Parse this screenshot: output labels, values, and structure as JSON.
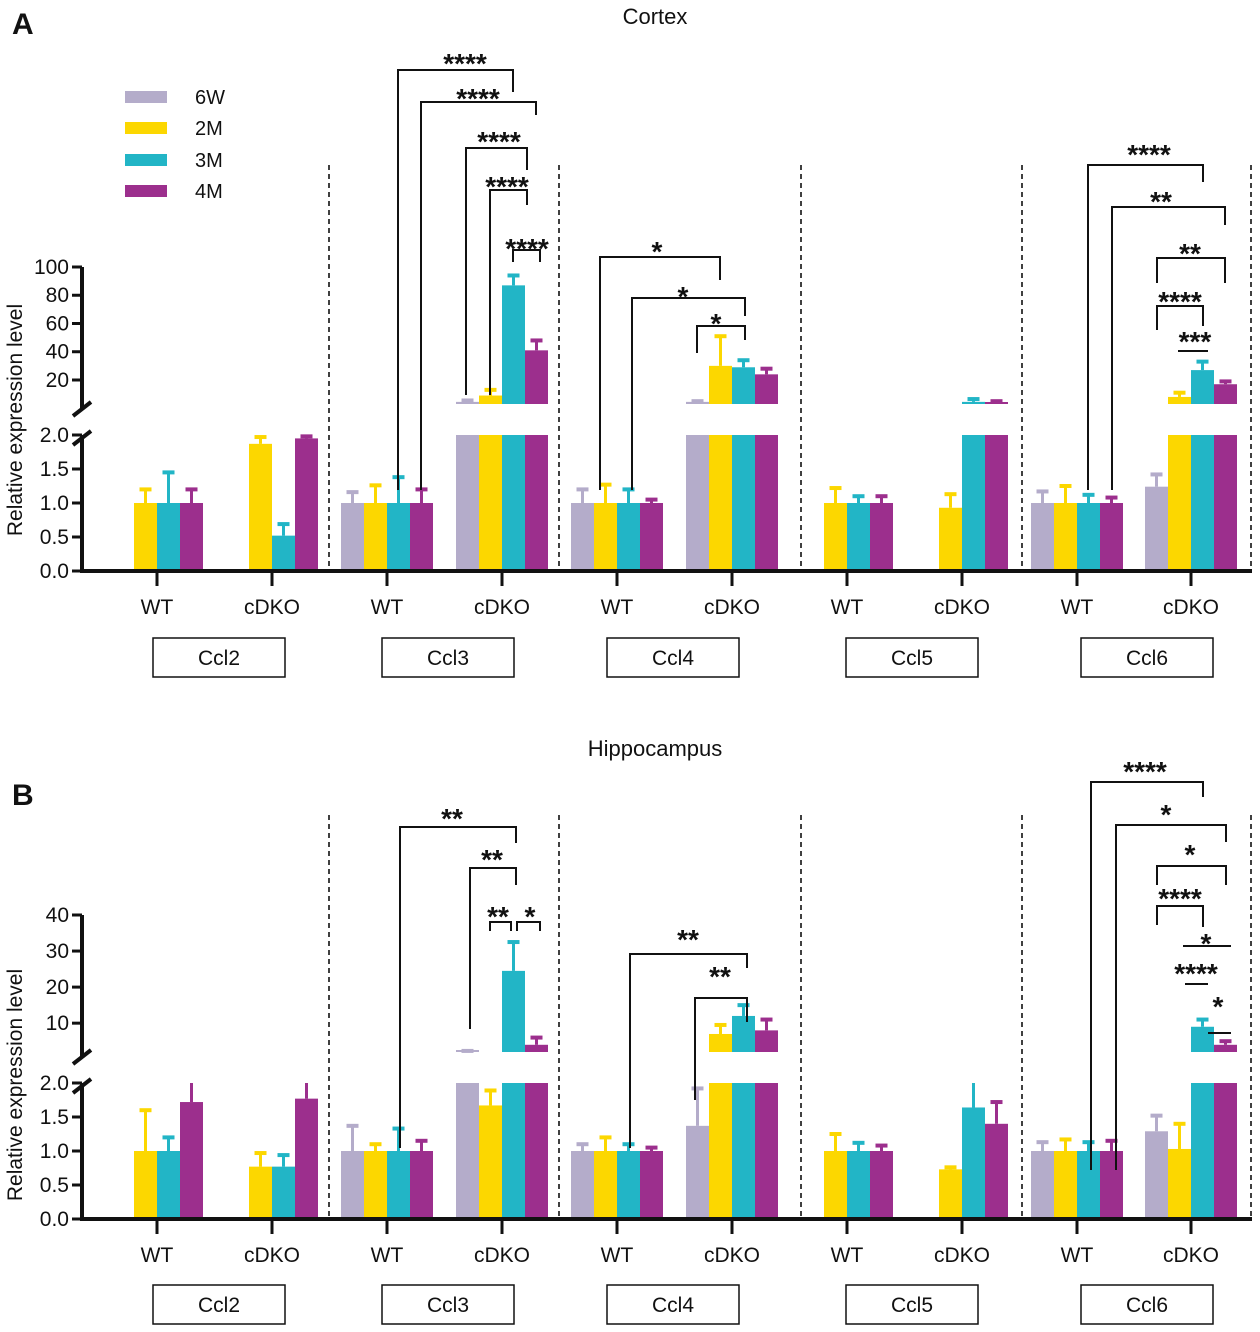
{
  "colors": {
    "6W": "#b4acca",
    "2M": "#fcd700",
    "3M": "#22b5c6",
    "4M": "#9c2f8d"
  },
  "chart_data": [
    {
      "type": "bar",
      "panel_label": "A",
      "title": "Cortex",
      "ylabel": "Relative expression level",
      "ylim_lower": [
        0,
        2
      ],
      "ylim_upper": [
        3,
        100
      ],
      "yticks_lower": [
        "0.0",
        "0.5",
        "1.0",
        "1.5",
        "2.0"
      ],
      "yticks_upper": [
        "20",
        "40",
        "60",
        "80",
        "100"
      ],
      "series": [
        "6W",
        "2M",
        "3M",
        "4M"
      ],
      "legend_position": "top-left",
      "genes": [
        {
          "name": "Ccl2",
          "groups": [
            {
              "genotype": "WT",
              "mean": [
                null,
                1.0,
                1.0,
                1.0
              ],
              "err": [
                null,
                0.2,
                0.45,
                0.2
              ]
            },
            {
              "genotype": "cDKO",
              "mean": [
                null,
                1.87,
                0.52,
                1.95
              ],
              "err": [
                null,
                0.1,
                0.17,
                0.03
              ]
            }
          ]
        },
        {
          "name": "Ccl3",
          "groups": [
            {
              "genotype": "WT",
              "mean": [
                1.0,
                1.0,
                1.0,
                1.0
              ],
              "err": [
                0.16,
                0.26,
                0.38,
                0.2
              ]
            },
            {
              "genotype": "cDKO",
              "mean": [
                4.5,
                9,
                87,
                41
              ],
              "err": [
                1,
                4,
                7,
                7
              ]
            }
          ]
        },
        {
          "name": "Ccl4",
          "groups": [
            {
              "genotype": "WT",
              "mean": [
                1.0,
                1.0,
                1.0,
                1.0
              ],
              "err": [
                0.2,
                0.27,
                0.2,
                0.05
              ]
            },
            {
              "genotype": "cDKO",
              "mean": [
                4.5,
                30,
                29,
                24
              ],
              "err": [
                0.5,
                21,
                5,
                4
              ]
            }
          ]
        },
        {
          "name": "Ccl5",
          "groups": [
            {
              "genotype": "WT",
              "mean": [
                null,
                1.0,
                1.0,
                1.0
              ],
              "err": [
                null,
                0.22,
                0.1,
                0.1
              ]
            },
            {
              "genotype": "cDKO",
              "mean": [
                null,
                0.93,
                4.5,
                4.0
              ],
              "err": [
                null,
                0.2,
                2,
                1
              ]
            }
          ]
        },
        {
          "name": "Ccl6",
          "groups": [
            {
              "genotype": "WT",
              "mean": [
                1.0,
                1.0,
                1.0,
                1.0
              ],
              "err": [
                0.17,
                0.25,
                0.12,
                0.08
              ]
            },
            {
              "genotype": "cDKO",
              "mean": [
                1.24,
                8,
                27,
                17
              ],
              "err": [
                0.18,
                3,
                6,
                2
              ]
            }
          ]
        }
      ],
      "significance": [
        {
          "label": "****",
          "type": "bracket",
          "from": [
            "Ccl3",
            "WT",
            "3M"
          ],
          "to": [
            "Ccl3",
            "cDKO",
            "3M"
          ]
        },
        {
          "label": "****",
          "type": "bracket",
          "from": [
            "Ccl3",
            "WT",
            "4M"
          ],
          "to": [
            "Ccl3",
            "cDKO",
            "4M"
          ]
        },
        {
          "label": "****",
          "type": "bracket",
          "from": [
            "Ccl3",
            "cDKO",
            "6W"
          ],
          "to": [
            "Ccl3",
            "cDKO",
            "3M"
          ]
        },
        {
          "label": "****",
          "type": "bracket",
          "from": [
            "Ccl3",
            "cDKO",
            "2M"
          ],
          "to": [
            "Ccl3",
            "cDKO",
            "3M"
          ]
        },
        {
          "label": "****",
          "type": "bracket",
          "from": [
            "Ccl3",
            "cDKO",
            "3M"
          ],
          "to": [
            "Ccl3",
            "cDKO",
            "4M"
          ]
        },
        {
          "label": "*",
          "type": "bracket",
          "from": [
            "Ccl4",
            "WT",
            "6W"
          ],
          "to": [
            "Ccl4",
            "cDKO",
            "2M"
          ]
        },
        {
          "label": "*",
          "type": "bracket",
          "from": [
            "Ccl4",
            "WT",
            "3M"
          ],
          "to": [
            "Ccl4",
            "cDKO",
            "3M"
          ]
        },
        {
          "label": "*",
          "type": "bracket",
          "from": [
            "Ccl4",
            "cDKO",
            "6W"
          ],
          "to": [
            "Ccl4",
            "cDKO",
            "3M"
          ]
        },
        {
          "label": "****",
          "type": "bracket",
          "from": [
            "Ccl6",
            "WT",
            "3M"
          ],
          "to": [
            "Ccl6",
            "cDKO",
            "3M"
          ]
        },
        {
          "label": "**",
          "type": "bracket",
          "from": [
            "Ccl6",
            "WT",
            "4M"
          ],
          "to": [
            "Ccl6",
            "cDKO",
            "4M"
          ]
        },
        {
          "label": "**",
          "type": "bracket",
          "from": [
            "Ccl6",
            "cDKO",
            "6W"
          ],
          "to": [
            "Ccl6",
            "cDKO",
            "4M"
          ]
        },
        {
          "label": "****",
          "type": "bracket",
          "from": [
            "Ccl6",
            "cDKO",
            "6W"
          ],
          "to": [
            "Ccl6",
            "cDKO",
            "3M"
          ]
        },
        {
          "label": "***",
          "type": "line",
          "from": [
            "Ccl6",
            "cDKO",
            "2M"
          ],
          "to": [
            "Ccl6",
            "cDKO",
            "3M"
          ]
        }
      ]
    },
    {
      "type": "bar",
      "panel_label": "B",
      "title": "Hippocampus",
      "ylabel": "Relative expression level",
      "ylim_lower": [
        0,
        2
      ],
      "ylim_upper": [
        2,
        40
      ],
      "yticks_lower": [
        "0.0",
        "0.5",
        "1.0",
        "1.5",
        "2.0"
      ],
      "yticks_upper": [
        "10",
        "20",
        "30",
        "40"
      ],
      "series": [
        "6W",
        "2M",
        "3M",
        "4M"
      ],
      "legend_position": "none",
      "genes": [
        {
          "name": "Ccl2",
          "groups": [
            {
              "genotype": "WT",
              "mean": [
                null,
                1.0,
                1.0,
                1.72
              ],
              "err": [
                null,
                0.6,
                0.2,
                0.28
              ]
            },
            {
              "genotype": "cDKO",
              "mean": [
                null,
                0.77,
                0.77,
                1.77
              ],
              "err": [
                null,
                0.2,
                0.17,
                0.23
              ]
            }
          ]
        },
        {
          "name": "Ccl3",
          "groups": [
            {
              "genotype": "WT",
              "mean": [
                1.0,
                1.0,
                1.0,
                1.0
              ],
              "err": [
                0.37,
                0.1,
                0.33,
                0.15
              ]
            },
            {
              "genotype": "cDKO",
              "mean": [
                2.1,
                1.67,
                24.5,
                4
              ],
              "err": [
                0.2,
                0.22,
                8,
                2
              ]
            }
          ]
        },
        {
          "name": "Ccl4",
          "groups": [
            {
              "genotype": "WT",
              "mean": [
                1.0,
                1.0,
                1.0,
                1.0
              ],
              "err": [
                0.1,
                0.2,
                0.1,
                0.05
              ]
            },
            {
              "genotype": "cDKO",
              "mean": [
                1.37,
                7,
                12,
                8
              ],
              "err": [
                0.55,
                2.5,
                3,
                3
              ]
            }
          ]
        },
        {
          "name": "Ccl5",
          "groups": [
            {
              "genotype": "WT",
              "mean": [
                null,
                1.0,
                1.0,
                1.0
              ],
              "err": [
                null,
                0.25,
                0.12,
                0.08
              ]
            },
            {
              "genotype": "cDKO",
              "mean": [
                null,
                0.73,
                1.64,
                1.4
              ],
              "err": [
                null,
                0.03,
                0.36,
                0.32
              ]
            }
          ]
        },
        {
          "name": "Ccl6",
          "groups": [
            {
              "genotype": "WT",
              "mean": [
                1.0,
                1.0,
                1.0,
                1.0
              ],
              "err": [
                0.13,
                0.17,
                0.13,
                0.15
              ]
            },
            {
              "genotype": "cDKO",
              "mean": [
                1.29,
                1.03,
                9,
                4
              ],
              "err": [
                0.23,
                0.37,
                2,
                1
              ]
            }
          ]
        }
      ],
      "significance": [
        {
          "label": "**",
          "type": "bracket",
          "from": [
            "Ccl3",
            "WT",
            "2M"
          ],
          "to": [
            "Ccl3",
            "cDKO",
            "3M"
          ]
        },
        {
          "label": "**",
          "type": "bracket",
          "from": [
            "Ccl3",
            "cDKO",
            "6W"
          ],
          "to": [
            "Ccl3",
            "cDKO",
            "3M"
          ]
        },
        {
          "label": "**",
          "type": "bracket",
          "from": [
            "Ccl3",
            "cDKO",
            "2M"
          ],
          "to": [
            "Ccl3",
            "cDKO",
            "3M"
          ]
        },
        {
          "label": "*",
          "type": "bracket",
          "from": [
            "Ccl3",
            "cDKO",
            "3M"
          ],
          "to": [
            "Ccl3",
            "cDKO",
            "4M"
          ]
        },
        {
          "label": "**",
          "type": "bracket",
          "from": [
            "Ccl4",
            "WT",
            "3M"
          ],
          "to": [
            "Ccl4",
            "cDKO",
            "3M"
          ]
        },
        {
          "label": "**",
          "type": "bracket",
          "from": [
            "Ccl4",
            "cDKO",
            "6W"
          ],
          "to": [
            "Ccl4",
            "cDKO",
            "3M"
          ]
        },
        {
          "label": "****",
          "type": "bracket",
          "from": [
            "Ccl6",
            "WT",
            "3M"
          ],
          "to": [
            "Ccl6",
            "cDKO",
            "3M"
          ]
        },
        {
          "label": "*",
          "type": "bracket",
          "from": [
            "Ccl6",
            "WT",
            "4M"
          ],
          "to": [
            "Ccl6",
            "cDKO",
            "4M"
          ]
        },
        {
          "label": "*",
          "type": "bracket",
          "from": [
            "Ccl6",
            "cDKO",
            "6W"
          ],
          "to": [
            "Ccl6",
            "cDKO",
            "4M"
          ]
        },
        {
          "label": "****",
          "type": "bracket",
          "from": [
            "Ccl6",
            "cDKO",
            "6W"
          ],
          "to": [
            "Ccl6",
            "cDKO",
            "3M"
          ]
        },
        {
          "label": "*",
          "type": "line",
          "from": [
            "Ccl6",
            "cDKO",
            "2M"
          ],
          "to": [
            "Ccl6",
            "cDKO",
            "4M"
          ]
        },
        {
          "label": "****",
          "type": "line",
          "from": [
            "Ccl6",
            "cDKO",
            "2M"
          ],
          "to": [
            "Ccl6",
            "cDKO",
            "3M"
          ]
        },
        {
          "label": "*",
          "type": "line",
          "from": [
            "Ccl6",
            "cDKO",
            "3M"
          ],
          "to": [
            "Ccl6",
            "cDKO",
            "4M"
          ]
        }
      ]
    }
  ]
}
